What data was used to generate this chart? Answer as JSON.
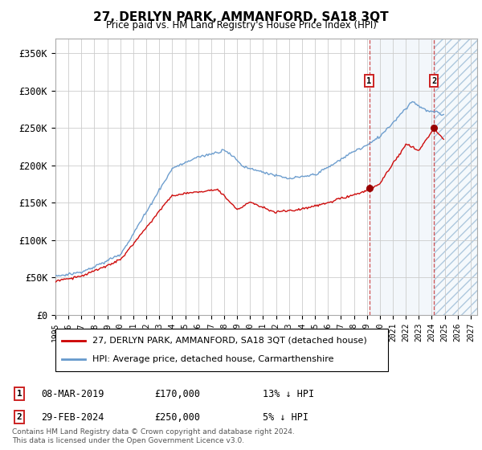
{
  "title": "27, DERLYN PARK, AMMANFORD, SA18 3QT",
  "subtitle": "Price paid vs. HM Land Registry's House Price Index (HPI)",
  "ylabel_ticks": [
    "£0",
    "£50K",
    "£100K",
    "£150K",
    "£200K",
    "£250K",
    "£300K",
    "£350K"
  ],
  "ytick_values": [
    0,
    50000,
    100000,
    150000,
    200000,
    250000,
    300000,
    350000
  ],
  "ylim": [
    0,
    370000
  ],
  "xlim_start": 1995.0,
  "xlim_end": 2027.5,
  "sale1_x": 2019.18,
  "sale1_y": 170000,
  "sale2_x": 2024.16,
  "sale2_y": 250000,
  "future_start": 2024.2,
  "legend_line1": "27, DERLYN PARK, AMMANFORD, SA18 3QT (detached house)",
  "legend_line2": "HPI: Average price, detached house, Carmarthenshire",
  "table_row1_num": "1",
  "table_row1_date": "08-MAR-2019",
  "table_row1_amount": "£170,000",
  "table_row1_hpi": "13% ↓ HPI",
  "table_row2_num": "2",
  "table_row2_date": "29-FEB-2024",
  "table_row2_amount": "£250,000",
  "table_row2_hpi": "5% ↓ HPI",
  "footer": "Contains HM Land Registry data © Crown copyright and database right 2024.\nThis data is licensed under the Open Government Licence v3.0.",
  "line_color_red": "#cc0000",
  "line_color_blue": "#6699cc",
  "shade_blue": "#dce8f5",
  "hatch_color": "#aac0d4"
}
